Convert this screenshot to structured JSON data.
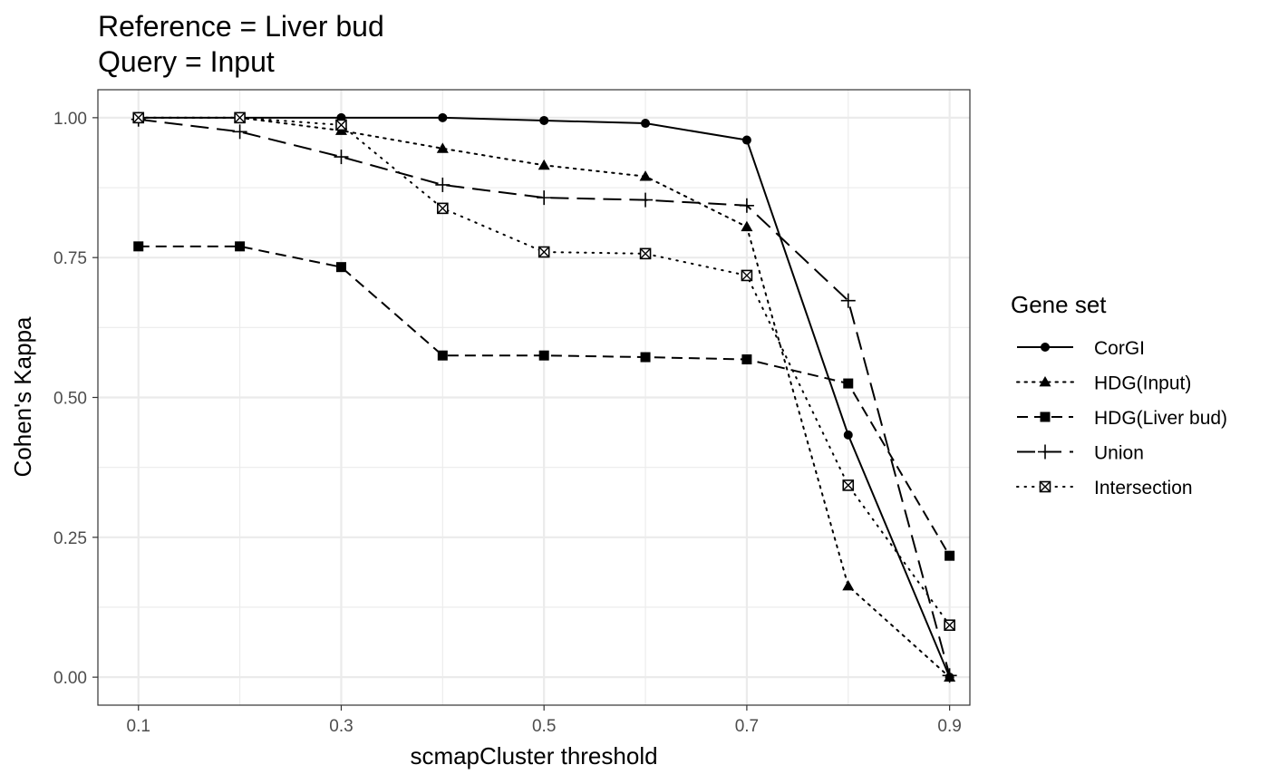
{
  "chart_data": {
    "type": "line",
    "title_lines": [
      "Reference = Liver bud",
      "Query = Input"
    ],
    "xlabel": "scmapCluster threshold",
    "ylabel": "Cohen's Kappa",
    "x": [
      0.1,
      0.2,
      0.3,
      0.4,
      0.5,
      0.6,
      0.7,
      0.8,
      0.9
    ],
    "x_ticks": [
      0.1,
      0.3,
      0.5,
      0.7,
      0.9
    ],
    "x_tick_labels": [
      "0.1",
      "0.3",
      "0.5",
      "0.7",
      "0.9"
    ],
    "xlim": [
      0.06,
      0.92
    ],
    "y_ticks": [
      0,
      0.25,
      0.5,
      0.75,
      1
    ],
    "y_tick_labels": [
      "0.00",
      "0.25",
      "0.50",
      "0.75",
      "1.00"
    ],
    "ylim": [
      -0.05,
      1.05
    ],
    "grid": true,
    "legend_title": "Gene set",
    "legend_position": "right",
    "series": [
      {
        "name": "CorGI",
        "marker": "circle",
        "linestyle": "solid",
        "values": [
          1.0,
          1.0,
          1.0,
          1.0,
          0.995,
          0.99,
          0.96,
          0.433,
          0.0
        ]
      },
      {
        "name": "HDG(Input)",
        "marker": "triangle",
        "linestyle": "dotted",
        "values": [
          1.0,
          1.0,
          0.977,
          0.945,
          0.915,
          0.895,
          0.805,
          0.163,
          0.0
        ]
      },
      {
        "name": "HDG(Liver bud)",
        "marker": "square",
        "linestyle": "dashed",
        "values": [
          0.77,
          0.77,
          0.733,
          0.575,
          0.575,
          0.572,
          0.568,
          0.525,
          0.217
        ]
      },
      {
        "name": "Union",
        "marker": "plus",
        "linestyle": "longdash",
        "values": [
          0.997,
          0.975,
          0.93,
          0.88,
          0.857,
          0.853,
          0.843,
          0.673,
          0.003
        ]
      },
      {
        "name": "Intersection",
        "marker": "boxx",
        "linestyle": "finedot",
        "values": [
          1.0,
          1.0,
          0.987,
          0.838,
          0.76,
          0.757,
          0.718,
          0.343,
          0.093
        ]
      }
    ]
  }
}
